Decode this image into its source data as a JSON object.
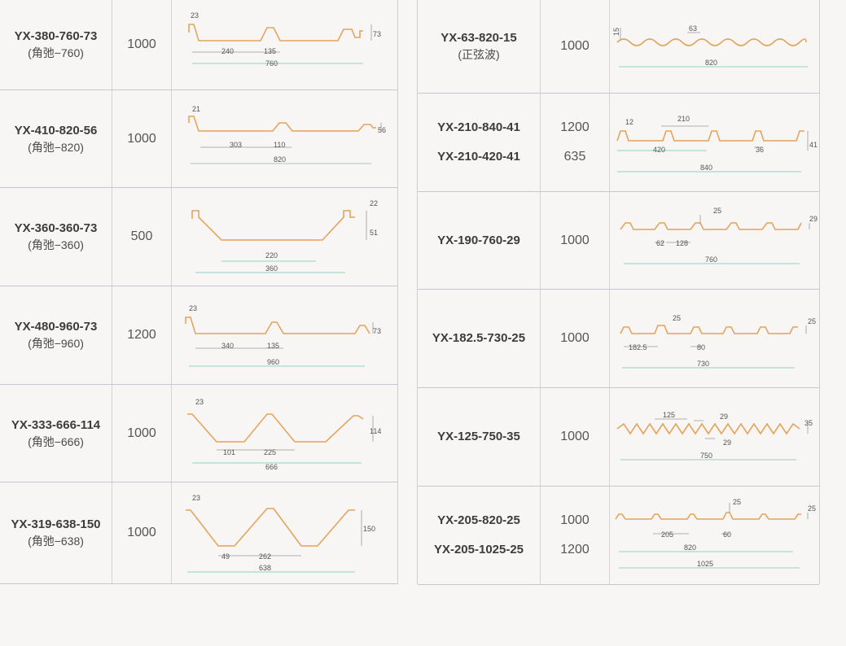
{
  "left": [
    {
      "model": "YX-380-760-73",
      "alt": "(角弛−760)",
      "width": "1000",
      "dims": [
        "23",
        "240",
        "135",
        "73",
        "760"
      ]
    },
    {
      "model": "YX-410-820-56",
      "alt": "(角弛−820)",
      "width": "1000",
      "dims": [
        "21",
        "303",
        "110",
        "56",
        "820"
      ]
    },
    {
      "model": "YX-360-360-73",
      "alt": "(角弛−360)",
      "width": "500",
      "dims": [
        "22",
        "51",
        "220",
        "360"
      ]
    },
    {
      "model": "YX-480-960-73",
      "alt": "(角弛−960)",
      "width": "1200",
      "dims": [
        "23",
        "340",
        "135",
        "73",
        "960"
      ]
    },
    {
      "model": "YX-333-666-114",
      "alt": "(角弛−666)",
      "width": "1000",
      "dims": [
        "23",
        "101",
        "225",
        "114",
        "666"
      ]
    },
    {
      "model": "YX-319-638-150",
      "alt": "(角弛−638)",
      "width": "1000",
      "dims": [
        "23",
        "49",
        "262",
        "150",
        "638"
      ]
    }
  ],
  "right": [
    {
      "models": [
        "YX-63-820-15"
      ],
      "alt": "(正弦波)",
      "widths": [
        "1000"
      ],
      "dims": [
        "15",
        "63",
        "820"
      ]
    },
    {
      "models": [
        "YX-210-840-41",
        "YX-210-420-41"
      ],
      "alt": "",
      "widths": [
        "1200",
        "635"
      ],
      "dims": [
        "12",
        "210",
        "420",
        "36",
        "41",
        "840"
      ]
    },
    {
      "models": [
        "YX-190-760-29"
      ],
      "alt": "",
      "widths": [
        "1000"
      ],
      "dims": [
        "25",
        "62",
        "128",
        "29",
        "760"
      ]
    },
    {
      "models": [
        "YX-182.5-730-25"
      ],
      "alt": "",
      "widths": [
        "1000"
      ],
      "dims": [
        "25",
        "182.5",
        "80",
        "25",
        "730"
      ]
    },
    {
      "models": [
        "YX-125-750-35"
      ],
      "alt": "",
      "widths": [
        "1000"
      ],
      "dims": [
        "125",
        "29",
        "29",
        "35",
        "750"
      ]
    },
    {
      "models": [
        "YX-205-820-25",
        "YX-205-1025-25"
      ],
      "alt": "",
      "widths": [
        "1000",
        "1200"
      ],
      "dims": [
        "25",
        "205",
        "60",
        "25",
        "820",
        "1025"
      ]
    }
  ]
}
